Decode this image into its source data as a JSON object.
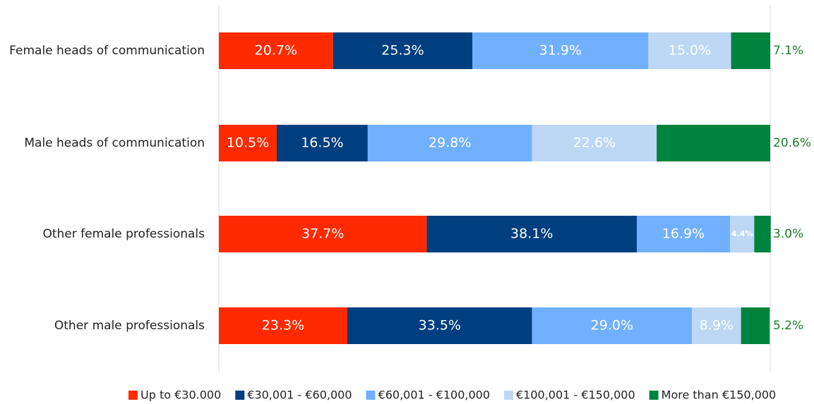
{
  "chart_data": {
    "type": "stacked-bar-horizontal",
    "categories": [
      "Female heads of communication",
      "Male heads of communication",
      "Other female professionals",
      "Other male professionals"
    ],
    "xlim": [
      0,
      100
    ],
    "legend": "bottom",
    "series": [
      {
        "name": "Up to €30.000",
        "color": "#ff2a00",
        "values": [
          20.7,
          10.5,
          37.7,
          23.3
        ],
        "value_labels": [
          "20.7%",
          "10.5%",
          "37.7%",
          "23.3%"
        ]
      },
      {
        "name": "€30,001 - €60,000",
        "color": "#003f7f",
        "values": [
          25.3,
          16.5,
          38.1,
          33.5
        ],
        "value_labels": [
          "25.3%",
          "16.5%",
          "38.1%",
          "33.5%"
        ]
      },
      {
        "name": "€60,001 - €100,000",
        "color": "#70b0ff",
        "values": [
          31.9,
          29.8,
          16.9,
          29.0
        ],
        "value_labels": [
          "31.9%",
          "29.8%",
          "16.9%",
          "29.0%"
        ]
      },
      {
        "name": "€100,001 - €150,000",
        "color": "#bdd7f5",
        "values": [
          15.0,
          22.6,
          4.4,
          8.9
        ],
        "value_labels": [
          "15.0%",
          "22.6%",
          "4.4%",
          "8.9%"
        ]
      },
      {
        "name": "More than €150,000",
        "color": "#00843d",
        "values": [
          7.1,
          20.6,
          3.0,
          5.2
        ],
        "value_labels": [
          "7.1%",
          "20.6%",
          "3.0%",
          "5.2%"
        ]
      }
    ]
  }
}
